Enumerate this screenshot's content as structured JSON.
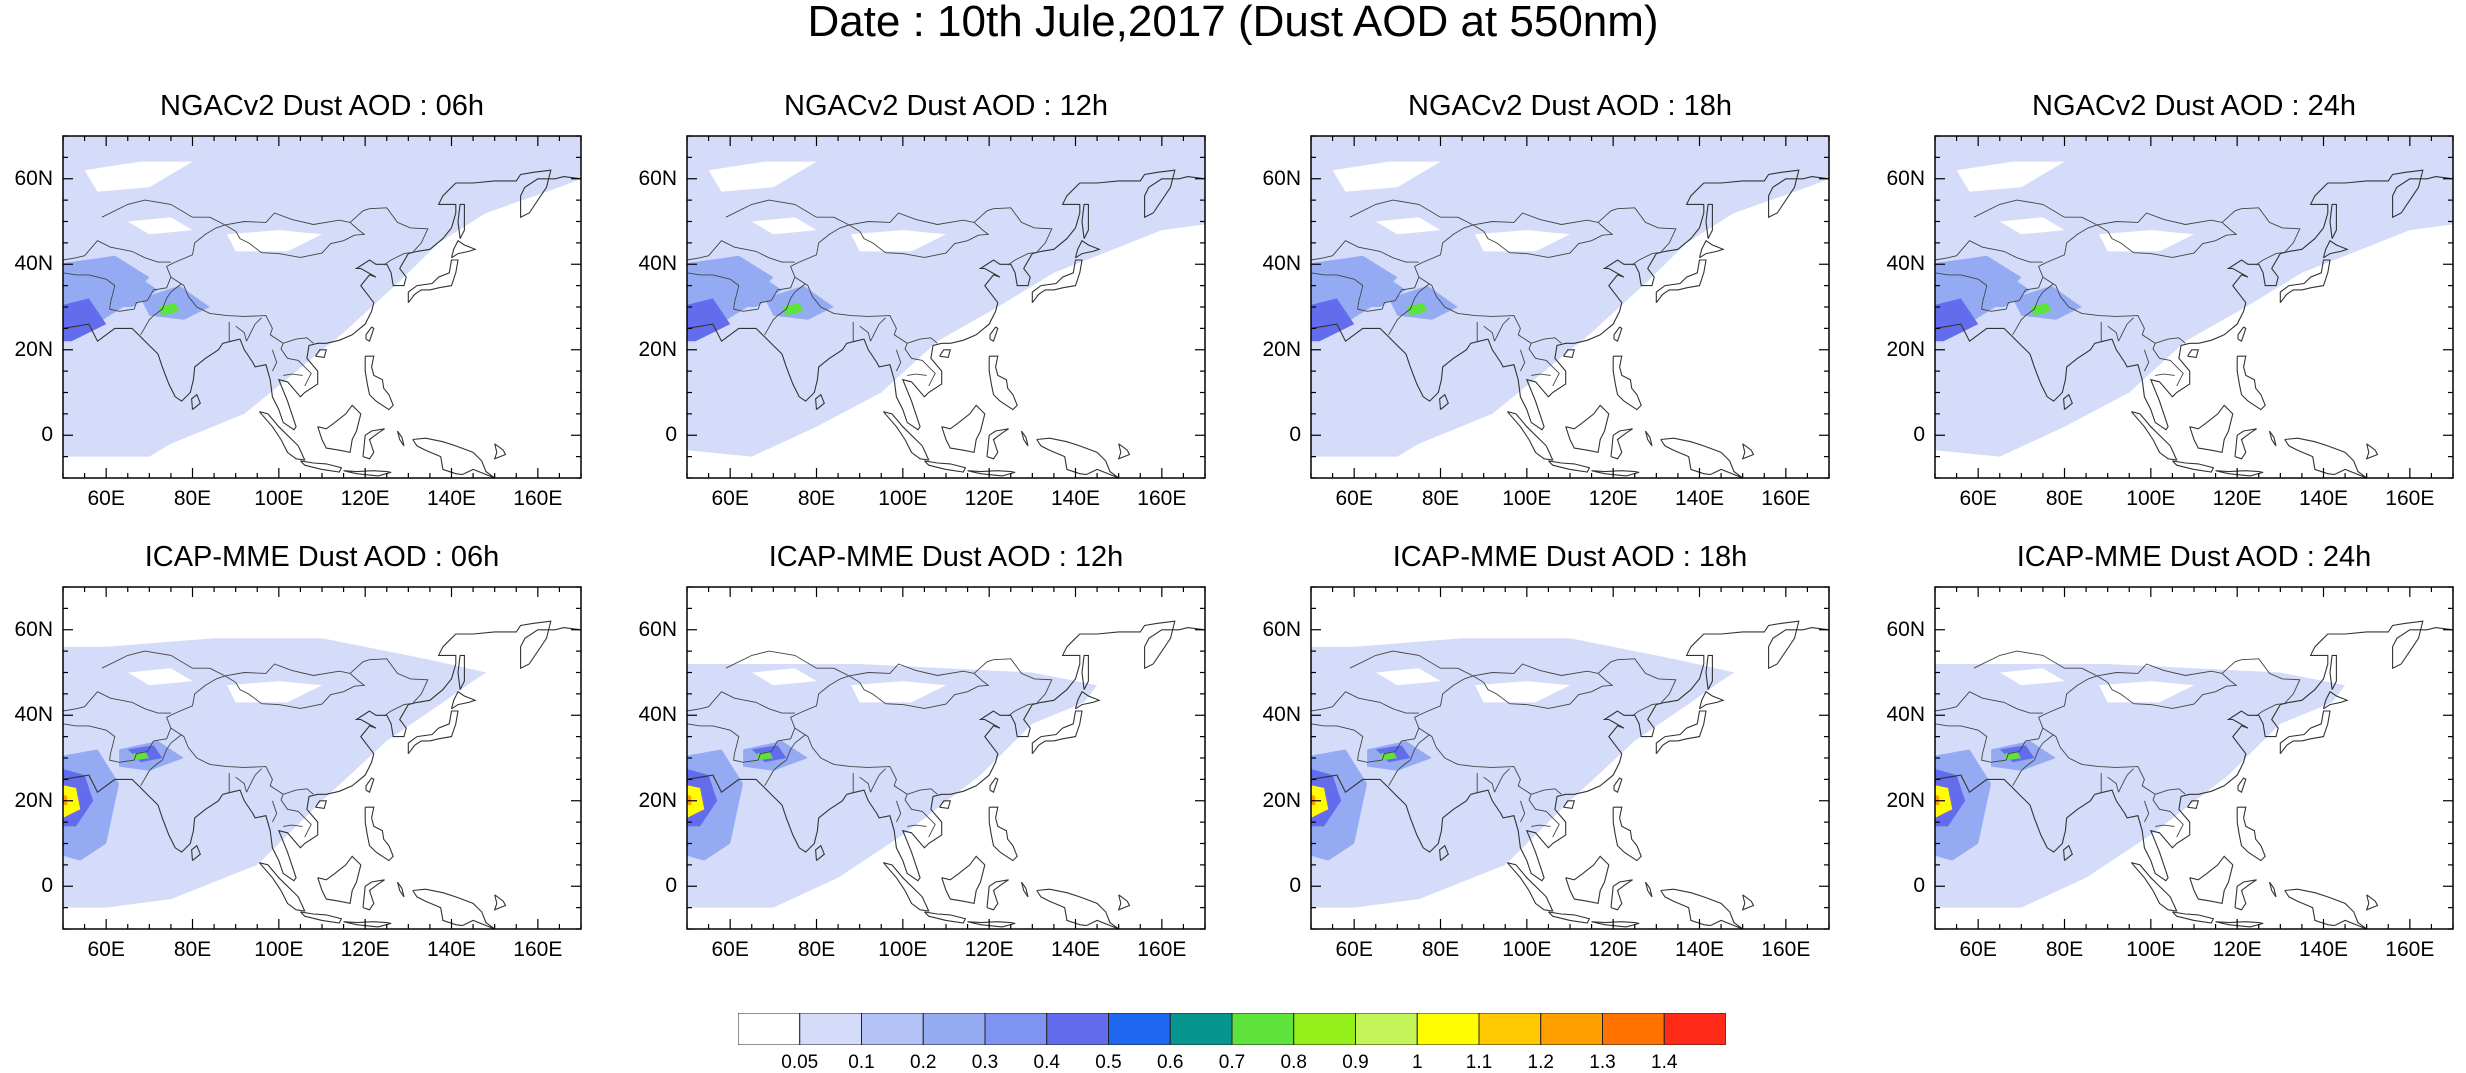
{
  "title": "Date : 10th Jule,2017 (Dust AOD at 550nm)",
  "panels": [
    {
      "title": "NGACv2 Dust AOD : 06h",
      "model": "NGACv2",
      "lead": "06h"
    },
    {
      "title": "NGACv2 Dust AOD : 12h",
      "model": "NGACv2",
      "lead": "12h"
    },
    {
      "title": "NGACv2 Dust AOD : 18h",
      "model": "NGACv2",
      "lead": "18h"
    },
    {
      "title": "NGACv2 Dust AOD : 24h",
      "model": "NGACv2",
      "lead": "24h"
    },
    {
      "title": "ICAP-MME Dust AOD : 06h",
      "model": "ICAP-MME",
      "lead": "06h"
    },
    {
      "title": "ICAP-MME Dust AOD : 12h",
      "model": "ICAP-MME",
      "lead": "12h"
    },
    {
      "title": "ICAP-MME Dust AOD : 18h",
      "model": "ICAP-MME",
      "lead": "18h"
    },
    {
      "title": "ICAP-MME Dust AOD : 24h",
      "model": "ICAP-MME",
      "lead": "24h"
    }
  ],
  "axes": {
    "lon_range": [
      50,
      170
    ],
    "lat_range": [
      -10,
      70
    ],
    "x_ticks": [
      "60E",
      "80E",
      "100E",
      "120E",
      "140E",
      "160E"
    ],
    "y_ticks": [
      "60N",
      "40N",
      "20N",
      "0"
    ]
  },
  "colorbar": {
    "labels": [
      "0.05",
      "0.1",
      "0.2",
      "0.3",
      "0.4",
      "0.5",
      "0.6",
      "0.7",
      "0.8",
      "0.9",
      "1",
      "1.1",
      "1.2",
      "1.3",
      "1.4"
    ],
    "colors": [
      "#ffffff",
      "#d4dcf9",
      "#b3c2f7",
      "#94abf4",
      "#7f93f0",
      "#636ced",
      "#1f66f1",
      "#07968f",
      "#5ee33c",
      "#95ef1b",
      "#c3f558",
      "#fffd00",
      "#ffc800",
      "#ffa000",
      "#ff7200",
      "#ff2b18"
    ]
  }
}
